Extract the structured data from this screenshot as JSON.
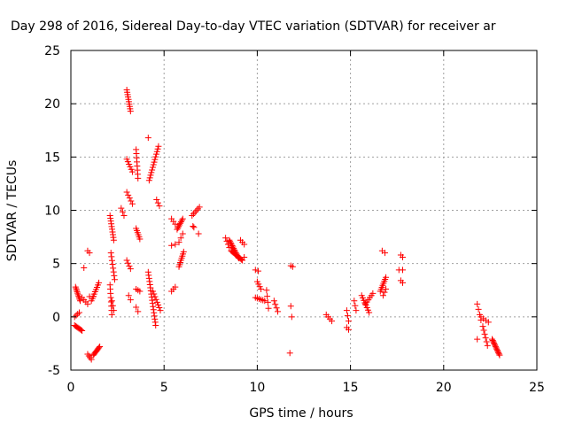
{
  "chart_data": {
    "type": "scatter",
    "title": "Day 298 of 2016, Sidereal Day-to-day VTEC variation (SDTVAR) for receiver ar",
    "xlabel": "GPS time / hours",
    "ylabel": "SDTVAR / TECUs",
    "xlim": [
      0,
      25
    ],
    "ylim": [
      -5,
      25
    ],
    "xticks": [
      0,
      5,
      10,
      15,
      20,
      25
    ],
    "yticks": [
      -5,
      0,
      5,
      10,
      15,
      20,
      25
    ],
    "x_tick_labels": [
      "0",
      "5",
      "10",
      "15",
      "20",
      "25"
    ],
    "y_tick_labels": [
      "-5",
      "0",
      "5",
      "10",
      "15",
      "20",
      "25"
    ],
    "grid": true,
    "marker": "+",
    "marker_color": "#ff0000",
    "segments": [
      {
        "x0": 0.25,
        "x1": 0.5,
        "y0": 2.8,
        "y1": 1.5,
        "n": 10
      },
      {
        "x0": 0.2,
        "x1": 0.6,
        "y0": -0.8,
        "y1": -1.3,
        "n": 8
      },
      {
        "x0": 0.2,
        "x1": 0.45,
        "y0": 0.0,
        "y1": 0.4,
        "n": 4
      },
      {
        "x0": 0.6,
        "x1": 0.9,
        "y0": 1.8,
        "y1": 1.2,
        "n": 4
      },
      {
        "x0": 0.7,
        "x1": 0.85,
        "y0": 4.6,
        "y1": 4.6,
        "n": 1
      },
      {
        "x0": 0.9,
        "x1": 1.0,
        "y0": 6.2,
        "y1": 6.0,
        "n": 2
      },
      {
        "x0": 0.9,
        "x1": 1.1,
        "y0": -3.5,
        "y1": -4.0,
        "n": 4
      },
      {
        "x0": 1.1,
        "x1": 1.5,
        "y0": 1.5,
        "y1": 3.2,
        "n": 9
      },
      {
        "x0": 1.2,
        "x1": 1.55,
        "y0": -3.6,
        "y1": -2.8,
        "n": 9
      },
      {
        "x0": 1.0,
        "x1": 1.2,
        "y0": 1.9,
        "y1": 1.9,
        "n": 2
      },
      {
        "x0": 2.1,
        "x1": 2.3,
        "y0": 9.5,
        "y1": 7.2,
        "n": 10
      },
      {
        "x0": 2.15,
        "x1": 2.35,
        "y0": 6.0,
        "y1": 3.5,
        "n": 8
      },
      {
        "x0": 2.1,
        "x1": 2.2,
        "y0": 3.0,
        "y1": 0.2,
        "n": 8
      },
      {
        "x0": 2.2,
        "x1": 2.3,
        "y0": 1.5,
        "y1": 0.6,
        "n": 3
      },
      {
        "x0": 2.7,
        "x1": 2.85,
        "y0": 10.2,
        "y1": 9.5,
        "n": 3
      },
      {
        "x0": 3.0,
        "x1": 3.2,
        "y0": 21.3,
        "y1": 19.3,
        "n": 10
      },
      {
        "x0": 3.0,
        "x1": 3.3,
        "y0": 14.8,
        "y1": 13.6,
        "n": 6
      },
      {
        "x0": 3.0,
        "x1": 3.3,
        "y0": 11.7,
        "y1": 10.6,
        "n": 5
      },
      {
        "x0": 3.0,
        "x1": 3.2,
        "y0": 5.3,
        "y1": 4.5,
        "n": 4
      },
      {
        "x0": 3.1,
        "x1": 3.2,
        "y0": 2.0,
        "y1": 1.6,
        "n": 2
      },
      {
        "x0": 3.5,
        "x1": 3.6,
        "y0": 15.7,
        "y1": 13.0,
        "n": 8
      },
      {
        "x0": 3.5,
        "x1": 3.7,
        "y0": 8.3,
        "y1": 7.3,
        "n": 6
      },
      {
        "x0": 3.5,
        "x1": 3.7,
        "y0": 2.6,
        "y1": 2.4,
        "n": 3
      },
      {
        "x0": 3.5,
        "x1": 3.6,
        "y0": 0.9,
        "y1": 0.5,
        "n": 2
      },
      {
        "x0": 4.15,
        "x1": 4.3,
        "y0": 16.8,
        "y1": 16.8,
        "n": 1
      },
      {
        "x0": 4.2,
        "x1": 4.7,
        "y0": 12.8,
        "y1": 16.0,
        "n": 14
      },
      {
        "x0": 4.6,
        "x1": 4.75,
        "y0": 11.0,
        "y1": 10.4,
        "n": 3
      },
      {
        "x0": 4.15,
        "x1": 4.55,
        "y0": 4.2,
        "y1": -0.8,
        "n": 18
      },
      {
        "x0": 4.4,
        "x1": 4.8,
        "y0": 2.4,
        "y1": 0.6,
        "n": 8
      },
      {
        "x0": 5.4,
        "x1": 5.6,
        "y0": 9.2,
        "y1": 8.7,
        "n": 3
      },
      {
        "x0": 5.4,
        "x1": 5.6,
        "y0": 6.7,
        "y1": 6.8,
        "n": 2
      },
      {
        "x0": 5.4,
        "x1": 5.6,
        "y0": 2.4,
        "y1": 2.8,
        "n": 3
      },
      {
        "x0": 5.7,
        "x1": 6.0,
        "y0": 8.2,
        "y1": 9.2,
        "n": 8
      },
      {
        "x0": 5.8,
        "x1": 6.05,
        "y0": 4.7,
        "y1": 6.1,
        "n": 8
      },
      {
        "x0": 5.8,
        "x1": 6.0,
        "y0": 7.0,
        "y1": 7.8,
        "n": 3
      },
      {
        "x0": 6.5,
        "x1": 6.9,
        "y0": 9.5,
        "y1": 10.3,
        "n": 6
      },
      {
        "x0": 6.55,
        "x1": 6.6,
        "y0": 8.5,
        "y1": 8.4,
        "n": 2
      },
      {
        "x0": 6.85,
        "x1": 6.9,
        "y0": 7.8,
        "y1": 7.8,
        "n": 1
      },
      {
        "x0": 8.3,
        "x1": 8.5,
        "y0": 7.4,
        "y1": 6.5,
        "n": 4
      },
      {
        "x0": 8.5,
        "x1": 9.0,
        "y0": 7.2,
        "y1": 5.5,
        "n": 14
      },
      {
        "x0": 8.6,
        "x1": 9.2,
        "y0": 6.2,
        "y1": 5.3,
        "n": 12
      },
      {
        "x0": 9.1,
        "x1": 9.3,
        "y0": 7.2,
        "y1": 6.8,
        "n": 3
      },
      {
        "x0": 9.3,
        "x1": 9.35,
        "y0": 5.6,
        "y1": 5.6,
        "n": 1
      },
      {
        "x0": 9.9,
        "x1": 10.05,
        "y0": 4.4,
        "y1": 4.3,
        "n": 2
      },
      {
        "x0": 10.0,
        "x1": 10.2,
        "y0": 3.3,
        "y1": 2.6,
        "n": 4
      },
      {
        "x0": 9.9,
        "x1": 10.4,
        "y0": 1.8,
        "y1": 1.5,
        "n": 6
      },
      {
        "x0": 10.5,
        "x1": 10.6,
        "y0": 2.5,
        "y1": 0.8,
        "n": 4
      },
      {
        "x0": 10.9,
        "x1": 11.1,
        "y0": 1.5,
        "y1": 0.5,
        "n": 4
      },
      {
        "x0": 11.8,
        "x1": 11.9,
        "y0": 4.8,
        "y1": 4.7,
        "n": 2
      },
      {
        "x0": 11.8,
        "x1": 11.85,
        "y0": 1.0,
        "y1": 0.0,
        "n": 2
      },
      {
        "x0": 11.75,
        "x1": 11.8,
        "y0": -3.4,
        "y1": -3.4,
        "n": 1
      },
      {
        "x0": 13.7,
        "x1": 14.0,
        "y0": 0.2,
        "y1": -0.4,
        "n": 4
      },
      {
        "x0": 14.8,
        "x1": 14.9,
        "y0": 0.6,
        "y1": -0.4,
        "n": 3
      },
      {
        "x0": 14.8,
        "x1": 14.9,
        "y0": -1.0,
        "y1": -1.2,
        "n": 2
      },
      {
        "x0": 15.2,
        "x1": 15.3,
        "y0": 1.5,
        "y1": 0.6,
        "n": 3
      },
      {
        "x0": 15.6,
        "x1": 16.0,
        "y0": 2.0,
        "y1": 0.4,
        "n": 8
      },
      {
        "x0": 15.8,
        "x1": 16.2,
        "y0": 1.2,
        "y1": 2.2,
        "n": 6
      },
      {
        "x0": 16.6,
        "x1": 16.9,
        "y0": 2.4,
        "y1": 3.7,
        "n": 8
      },
      {
        "x0": 16.7,
        "x1": 16.85,
        "y0": 6.2,
        "y1": 6.0,
        "n": 2
      },
      {
        "x0": 16.75,
        "x1": 16.9,
        "y0": 2.0,
        "y1": 2.6,
        "n": 3
      },
      {
        "x0": 17.7,
        "x1": 17.8,
        "y0": 5.8,
        "y1": 5.6,
        "n": 2
      },
      {
        "x0": 17.6,
        "x1": 17.8,
        "y0": 4.4,
        "y1": 4.4,
        "n": 2
      },
      {
        "x0": 17.7,
        "x1": 17.8,
        "y0": 3.4,
        "y1": 3.2,
        "n": 2
      },
      {
        "x0": 21.8,
        "x1": 22.0,
        "y0": 1.2,
        "y1": -0.3,
        "n": 4
      },
      {
        "x0": 21.8,
        "x1": 22.0,
        "y0": -2.1,
        "y1": -2.1,
        "n": 1
      },
      {
        "x0": 22.0,
        "x1": 22.4,
        "y0": 0.0,
        "y1": -0.5,
        "n": 4
      },
      {
        "x0": 22.1,
        "x1": 22.35,
        "y0": -0.9,
        "y1": -2.7,
        "n": 6
      },
      {
        "x0": 22.6,
        "x1": 23.0,
        "y0": -2.1,
        "y1": -3.6,
        "n": 14
      }
    ]
  }
}
